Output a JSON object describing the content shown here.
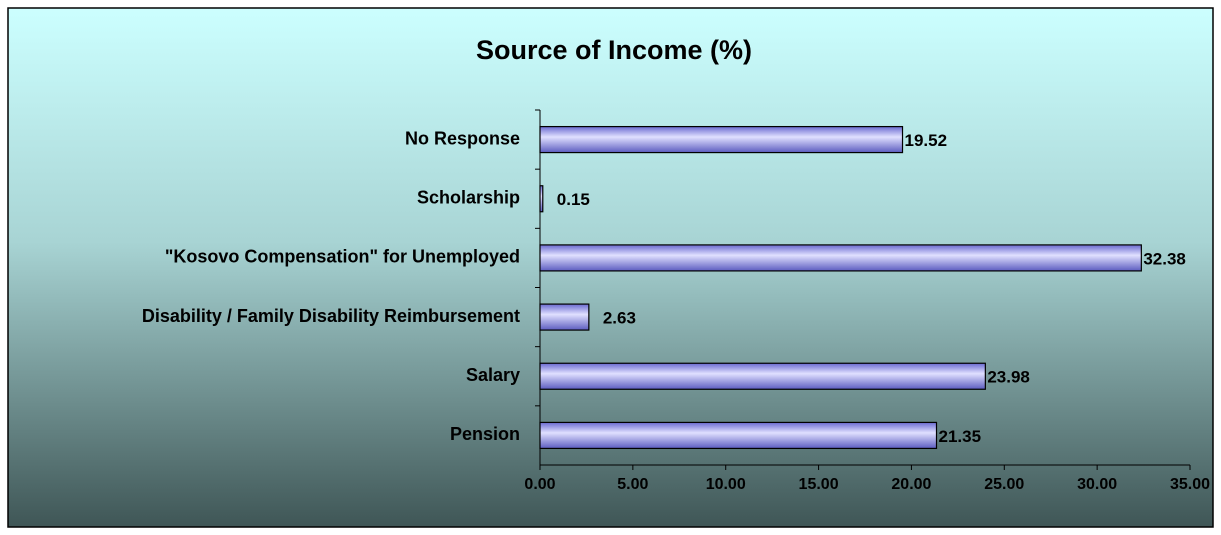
{
  "chart_data": {
    "type": "bar",
    "orientation": "horizontal",
    "title": "Source of Income (%)",
    "categories": [
      "No Response",
      "Scholarship",
      "\"Kosovo Compensation\" for Unemployed",
      "Disability / Family Disability Reimbursement",
      "Salary",
      "Pension"
    ],
    "values": [
      19.52,
      0.15,
      32.38,
      2.63,
      23.98,
      21.35
    ],
    "color": "#9999ff",
    "xlim": [
      0,
      35
    ],
    "xticks": [
      {
        "value": 0,
        "label": "0.00"
      },
      {
        "value": 5,
        "label": "5.00"
      },
      {
        "value": 10,
        "label": "10.00"
      },
      {
        "value": 15,
        "label": "15.00"
      },
      {
        "value": 20,
        "label": "20.00"
      },
      {
        "value": 25,
        "label": "25.00"
      },
      {
        "value": 30,
        "label": "30.00"
      },
      {
        "value": 35,
        "label": "35.00"
      }
    ],
    "grid": false
  }
}
